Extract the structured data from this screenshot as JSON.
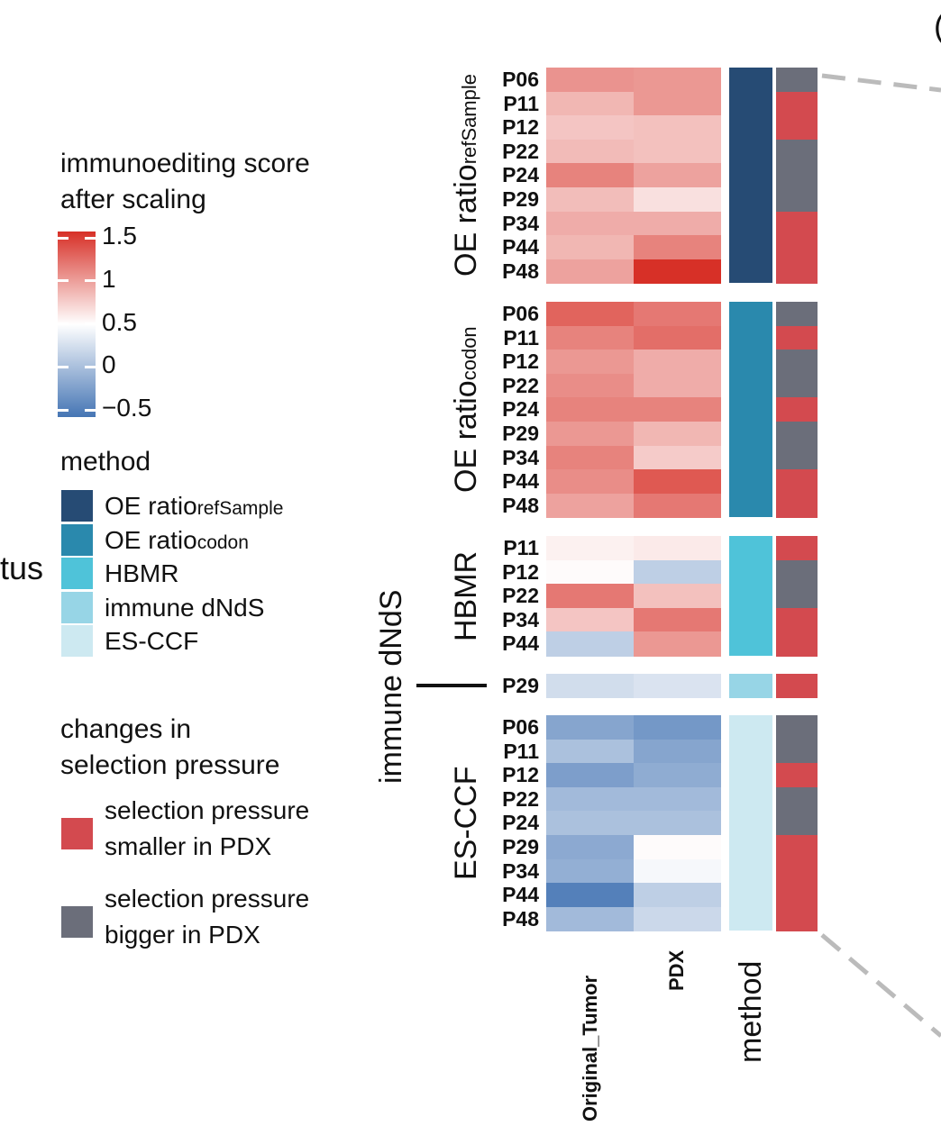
{
  "legend": {
    "score_title_line1": "immunoediting score",
    "score_title_line2": "after scaling",
    "score_ticks": [
      "1.5",
      "1",
      "0.5",
      "0",
      "−0.5"
    ],
    "score_colors": {
      "low": "#4575b4",
      "mid": "#ffffff",
      "high": "#d73027"
    },
    "method_title": "method",
    "methods": [
      {
        "main": "OE ratio",
        "sub": "refSample",
        "color": "#264b74"
      },
      {
        "main": "OE ratio",
        "sub": "codon",
        "color": "#2a89ad"
      },
      {
        "main": "HBMR",
        "sub": "",
        "color": "#4fc3d9"
      },
      {
        "main": "immune dNdS",
        "sub": "",
        "color": "#97d5e6"
      },
      {
        "main": "ES-CCF",
        "sub": "",
        "color": "#cde9f1"
      }
    ],
    "change_title_line1": "changes in",
    "change_title_line2": "selection pressure",
    "changes": [
      {
        "line1": "selection pressure",
        "line2": "smaller in PDX",
        "color": "#d34a4f"
      },
      {
        "line1": "selection pressure",
        "line2": "bigger in PDX",
        "color": "#6b6e7a"
      }
    ]
  },
  "partial_left_text": "tus",
  "partial_top_text": "(",
  "chart_data": {
    "type": "heatmap",
    "columns": [
      "Original_Tumor",
      "PDX"
    ],
    "method_column_label": "method",
    "groups": [
      {
        "label_main": "OE ratio",
        "label_sub": "refSample",
        "method_index": 0,
        "rows": [
          {
            "id": "P06",
            "values": [
              1.02,
              1.0
            ],
            "change": "bigger"
          },
          {
            "id": "P11",
            "values": [
              0.85,
              1.0
            ],
            "change": "smaller"
          },
          {
            "id": "P12",
            "values": [
              0.78,
              0.8
            ],
            "change": "smaller"
          },
          {
            "id": "P22",
            "values": [
              0.83,
              0.8
            ],
            "change": "bigger"
          },
          {
            "id": "P24",
            "values": [
              1.1,
              0.95
            ],
            "change": "bigger"
          },
          {
            "id": "P29",
            "values": [
              0.82,
              0.65
            ],
            "change": "bigger"
          },
          {
            "id": "P34",
            "values": [
              0.9,
              0.9
            ],
            "change": "smaller"
          },
          {
            "id": "P44",
            "values": [
              0.85,
              1.1
            ],
            "change": "smaller"
          },
          {
            "id": "P48",
            "values": [
              0.95,
              1.5
            ],
            "change": "smaller"
          }
        ]
      },
      {
        "label_main": "OE ratio",
        "label_sub": "codon",
        "method_index": 1,
        "rows": [
          {
            "id": "P06",
            "values": [
              1.25,
              1.15
            ],
            "change": "bigger"
          },
          {
            "id": "P11",
            "values": [
              1.1,
              1.2
            ],
            "change": "smaller"
          },
          {
            "id": "P12",
            "values": [
              1.0,
              0.9
            ],
            "change": "bigger"
          },
          {
            "id": "P22",
            "values": [
              1.05,
              0.9
            ],
            "change": "bigger"
          },
          {
            "id": "P24",
            "values": [
              1.1,
              1.1
            ],
            "change": "smaller"
          },
          {
            "id": "P29",
            "values": [
              1.0,
              0.85
            ],
            "change": "bigger"
          },
          {
            "id": "P34",
            "values": [
              1.1,
              0.75
            ],
            "change": "bigger"
          },
          {
            "id": "P44",
            "values": [
              1.05,
              1.3
            ],
            "change": "smaller"
          },
          {
            "id": "P48",
            "values": [
              0.95,
              1.15
            ],
            "change": "smaller"
          }
        ]
      },
      {
        "label_main": "HBMR",
        "label_sub": "",
        "method_index": 2,
        "rows": [
          {
            "id": "P11",
            "values": [
              0.57,
              0.6
            ],
            "change": "smaller"
          },
          {
            "id": "P12",
            "values": [
              0.52,
              0.15
            ],
            "change": "bigger"
          },
          {
            "id": "P22",
            "values": [
              1.15,
              0.8
            ],
            "change": "bigger"
          },
          {
            "id": "P34",
            "values": [
              0.78,
              1.15
            ],
            "change": "smaller"
          },
          {
            "id": "P44",
            "values": [
              0.15,
              1.0
            ],
            "change": "smaller"
          }
        ]
      },
      {
        "label_main": "immune dNdS",
        "label_sub": "",
        "method_index": 3,
        "rows": [
          {
            "id": "P29",
            "values": [
              0.25,
              0.3
            ],
            "change": "smaller"
          }
        ]
      },
      {
        "label_main": "ES-CCF",
        "label_sub": "",
        "method_index": 4,
        "rows": [
          {
            "id": "P06",
            "values": [
              -0.15,
              -0.25
            ],
            "change": "bigger"
          },
          {
            "id": "P11",
            "values": [
              0.05,
              -0.15
            ],
            "change": "bigger"
          },
          {
            "id": "P12",
            "values": [
              -0.2,
              -0.1
            ],
            "change": "smaller"
          },
          {
            "id": "P22",
            "values": [
              0.0,
              0.0
            ],
            "change": "bigger"
          },
          {
            "id": "P24",
            "values": [
              0.05,
              0.05
            ],
            "change": "bigger"
          },
          {
            "id": "P29",
            "values": [
              -0.12,
              0.52
            ],
            "change": "smaller"
          },
          {
            "id": "P34",
            "values": [
              -0.08,
              0.45
            ],
            "change": "smaller"
          },
          {
            "id": "P44",
            "values": [
              -0.42,
              0.15
            ],
            "change": "smaller"
          },
          {
            "id": "P48",
            "values": [
              0.0,
              0.22
            ],
            "change": "smaller"
          }
        ]
      }
    ],
    "color_range": [
      -0.5,
      1.5
    ]
  }
}
